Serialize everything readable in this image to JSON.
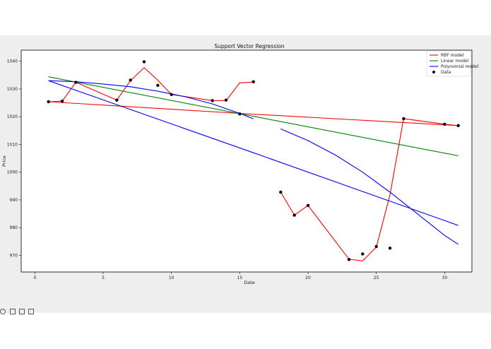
{
  "chart_data": {
    "type": "line",
    "title": "Support Vector Regression",
    "xlabel": "Date",
    "ylabel": "Price",
    "xlim": [
      -1,
      32
    ],
    "ylim": [
      964,
      1044
    ],
    "xticks": [
      0,
      5,
      10,
      15,
      20,
      25,
      30
    ],
    "yticks": [
      970,
      980,
      990,
      1000,
      1010,
      1020,
      1030,
      1040
    ],
    "legend_position": "top-right",
    "grid": false,
    "series": [
      {
        "name": "RBF model",
        "kind": "line",
        "color": "#ff0000",
        "segments": [
          {
            "x": [
              1,
              2,
              3,
              6,
              7,
              8,
              9,
              10,
              13,
              14,
              15,
              16
            ],
            "y": [
              1025.4,
              1025.6,
              1032.4,
              1026.0,
              1033.0,
              1037.7,
              1033.2,
              1028.0,
              1025.8,
              1025.8,
              1032.2,
              1032.5
            ]
          },
          {
            "x": [
              18,
              19,
              20,
              23,
              24,
              25,
              26,
              27,
              30,
              31
            ],
            "y": [
              992.8,
              984.5,
              988.0,
              968.6,
              968.0,
              973.0,
              991.8,
              1019.3,
              1017.3,
              1016.8
            ]
          },
          {
            "x": [
              1,
              15,
              31
            ],
            "y": [
              1025.4,
              1021.2,
              1016.8
            ]
          }
        ]
      },
      {
        "name": "Linear model",
        "kind": "line",
        "color": "#008000",
        "segments": [
          {
            "x": [
              1,
              31
            ],
            "y": [
              1034.4,
              1005.9
            ]
          }
        ]
      },
      {
        "name": "Polynomial model",
        "kind": "line",
        "color": "#0000ff",
        "segments": [
          {
            "x": [
              1,
              3,
              5,
              7,
              9,
              11,
              13,
              15,
              16
            ],
            "y": [
              1033.0,
              1032.6,
              1031.8,
              1030.8,
              1029.2,
              1027.2,
              1024.6,
              1021.2,
              1019.2
            ]
          },
          {
            "x": [
              18,
              20,
              22,
              24,
              26,
              28,
              30,
              31
            ],
            "y": [
              1015.6,
              1011.4,
              1006.2,
              1000.0,
              992.8,
              985.0,
              977.2,
              974.0
            ]
          },
          {
            "x": [
              1,
              16,
              31
            ],
            "y": [
              1033.0,
              1007.0,
              980.8
            ]
          }
        ]
      },
      {
        "name": "Data",
        "kind": "scatter",
        "color": "#000000",
        "x": [
          1,
          2,
          3,
          6,
          7,
          8,
          9,
          10,
          13,
          14,
          15,
          16,
          18,
          19,
          20,
          23,
          24,
          25,
          26,
          27,
          30,
          31
        ],
        "y": [
          1025.4,
          1025.6,
          1032.4,
          1026.0,
          1033.2,
          1039.8,
          1031.3,
          1028.0,
          1025.8,
          1026.0,
          1021.0,
          1032.6,
          992.8,
          984.5,
          988.0,
          968.5,
          970.5,
          973.2,
          972.6,
          1019.3,
          1017.3,
          1016.8
        ]
      }
    ]
  }
}
